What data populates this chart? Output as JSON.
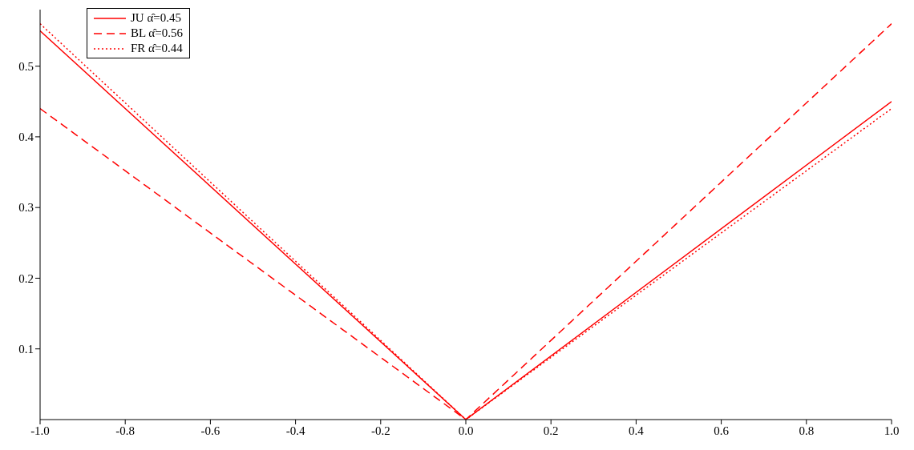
{
  "chart_data": {
    "type": "line",
    "x": [
      -1,
      0,
      1
    ],
    "series": [
      {
        "name": "JU α̂=0.45",
        "color": "#ff0000",
        "values": [
          0.55,
          0,
          0.45
        ],
        "line_style": "solid"
      },
      {
        "name": "BL α̂=0.56",
        "color": "#ff0000",
        "values": [
          0.44,
          0,
          0.56
        ],
        "line_style": "dashed"
      },
      {
        "name": "FR α̂=0.44",
        "color": "#ff0000",
        "values": [
          0.56,
          0,
          0.44
        ],
        "line_style": "dotted"
      }
    ],
    "xlim": [
      -1,
      1
    ],
    "xticks": [
      {
        "value": -1,
        "label": "-1.0"
      },
      {
        "value": -0.8,
        "label": "-0.8"
      },
      {
        "value": -0.6,
        "label": "-0.6"
      },
      {
        "value": -0.4,
        "label": "-0.4"
      },
      {
        "value": -0.2,
        "label": "-0.2"
      },
      {
        "value": 0,
        "label": "0.0"
      },
      {
        "value": 0.2,
        "label": "0.2"
      },
      {
        "value": 0.4,
        "label": "0.4"
      },
      {
        "value": 0.6,
        "label": "0.6"
      },
      {
        "value": 0.8,
        "label": "0.8"
      },
      {
        "value": 1,
        "label": "1.0"
      }
    ],
    "ylim": [
      0,
      0.58
    ],
    "yticks": [
      0.1,
      0.2,
      0.3,
      0.4,
      0.5
    ],
    "grid": false,
    "legend": "top left",
    "marker": "none"
  }
}
